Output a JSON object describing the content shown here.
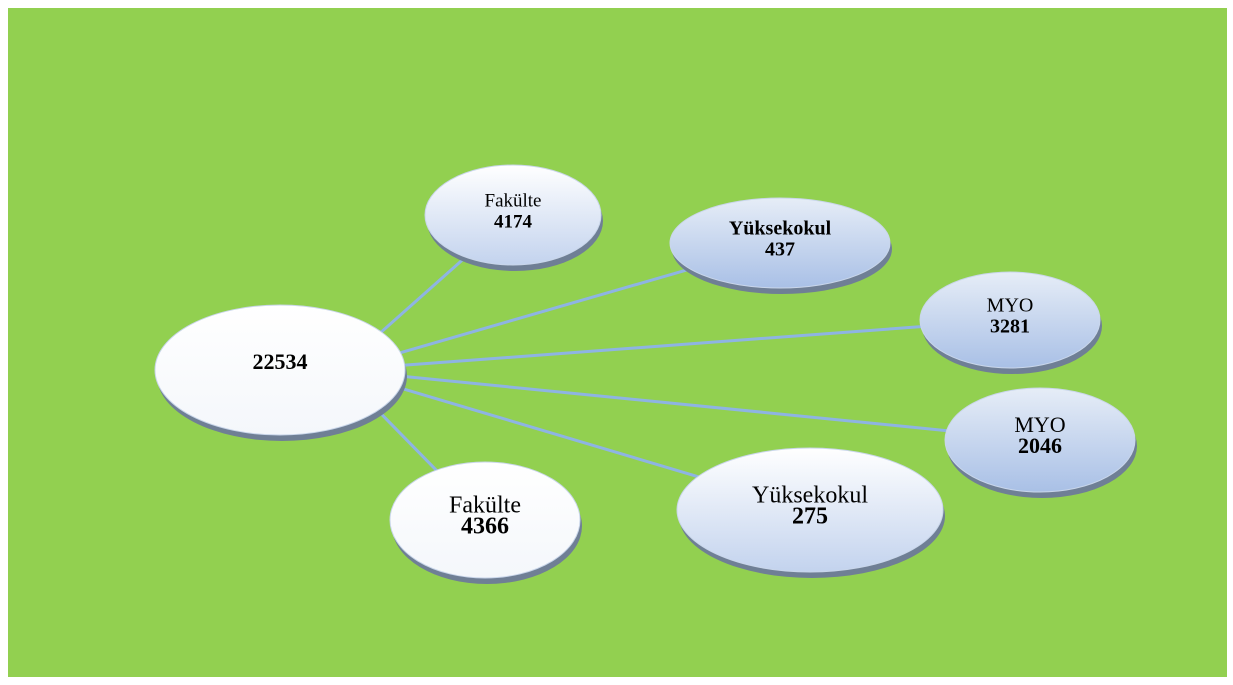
{
  "center": {
    "value": "22534"
  },
  "nodes": [
    {
      "label": "Fakülte",
      "value": "4174"
    },
    {
      "label": "Yüksekokul",
      "value": "437"
    },
    {
      "label": "MYO",
      "value": "3281"
    },
    {
      "label": "MYO",
      "value": "2046"
    },
    {
      "label": "Yüksekokul",
      "value": "275"
    },
    {
      "label": "Fakülte",
      "value": "4366"
    }
  ]
}
